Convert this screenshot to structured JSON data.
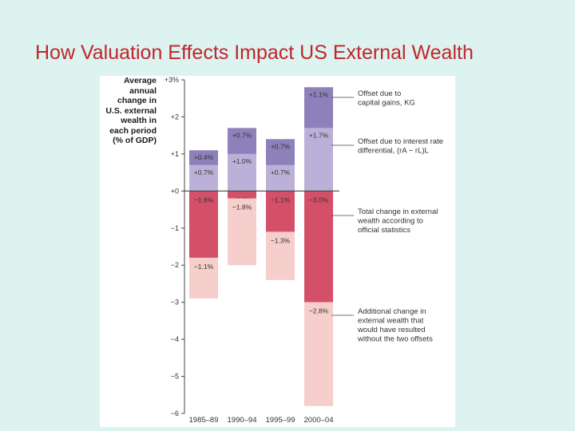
{
  "slide": {
    "title": "How Valuation Effects Impact US External Wealth"
  },
  "chart_data": {
    "type": "bar",
    "stacked": true,
    "ylabel_lines": [
      "Average",
      "annual",
      "change in",
      "U.S. external",
      "wealth in",
      "each period",
      "(% of GDP)"
    ],
    "ylim": [
      -6,
      3
    ],
    "yticks": [
      3,
      2,
      1,
      0,
      -1,
      -2,
      -3,
      -4,
      -5,
      -6
    ],
    "ytick_labels": [
      "+3%",
      "+2",
      "+1",
      "+0",
      "−1",
      "−2",
      "−3",
      "−4",
      "−5",
      "−6"
    ],
    "categories": [
      "1985–89",
      "1990–94",
      "1995–99",
      "2000–04"
    ],
    "colors": {
      "capital_gains": "#8e80bb",
      "interest_diff": "#bbb1d8",
      "total_change": "#d44f68",
      "additional": "#f6cecb",
      "axis": "#444444",
      "text": "#333333"
    },
    "series": [
      {
        "name": "Offset due to interest rate differential",
        "key": "interest_diff",
        "values": [
          0.7,
          1.0,
          0.7,
          1.7
        ],
        "labels": [
          "+0.7%",
          "+1.0%",
          "+0.7%",
          "+1.7%"
        ]
      },
      {
        "name": "Offset due to capital gains",
        "key": "capital_gains",
        "values": [
          0.4,
          0.7,
          0.7,
          1.1
        ],
        "labels": [
          "+0.4%",
          "+0.7%",
          "+0.7%",
          "+1.1%"
        ]
      },
      {
        "name": "Total change in external wealth according to official statistics",
        "key": "total_change",
        "values": [
          -1.8,
          -0.2,
          -1.1,
          -3.0
        ],
        "labels": [
          "−1.8%",
          "−0.2%",
          "−1.1%",
          "−3.0%"
        ]
      },
      {
        "name": "Additional change in external wealth that would have resulted without the two offsets",
        "key": "additional",
        "values": [
          -1.1,
          -1.8,
          -1.3,
          -2.8
        ],
        "labels": [
          "−1.1%",
          "−1.8%",
          "−1.3%",
          "−2.8%"
        ]
      }
    ],
    "annotations": [
      {
        "key": "capital_gains",
        "lines": [
          "Offset due to",
          "capital gains, KG"
        ]
      },
      {
        "key": "interest_diff",
        "lines": [
          "Offset due to interest rate",
          "differential, (rA − rL)L"
        ]
      },
      {
        "key": "total_change",
        "lines": [
          "Total change in external",
          "wealth according to",
          "official statistics"
        ]
      },
      {
        "key": "additional",
        "lines": [
          "Additional change in",
          "external wealth that",
          "would have resulted",
          "without the two offsets"
        ]
      }
    ]
  }
}
